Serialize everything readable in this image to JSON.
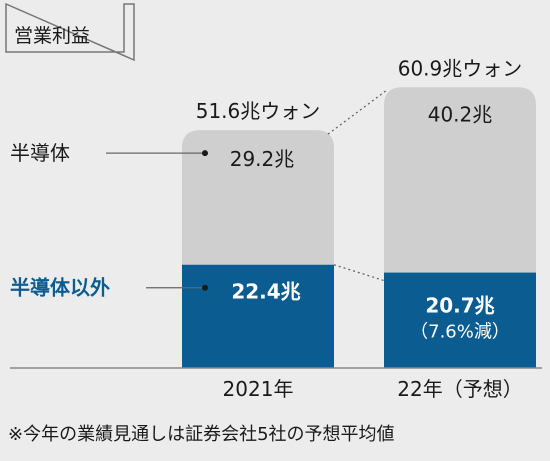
{
  "chart_data": {
    "type": "bar",
    "stacked": true,
    "title": "営業利益",
    "categories": [
      "2021年",
      "22年（予想）"
    ],
    "series": [
      {
        "name": "半導体以外",
        "values": [
          22.4,
          20.7
        ],
        "labels": [
          "22.4兆",
          "20.7兆"
        ],
        "sublabels": [
          "",
          "（7.6%減）"
        ],
        "color": "#0b5d91"
      },
      {
        "name": "半導体",
        "values": [
          29.2,
          40.2
        ],
        "labels": [
          "29.2兆",
          "40.2兆"
        ],
        "color": "#cfcfcf"
      }
    ],
    "totals": [
      51.6,
      60.9
    ],
    "total_labels": [
      "51.6兆ウォン",
      "60.9兆ウォン"
    ],
    "note": "※今年の業績見通しは証券会社5社の予想平均値",
    "grid": false,
    "legend_placement": "left"
  },
  "colors": {
    "background": "#ececec",
    "gray_bar": "#cfcfcf",
    "blue_bar": "#0b5d91",
    "blue_text": "#0b5d91",
    "leader_line": "#666666"
  }
}
